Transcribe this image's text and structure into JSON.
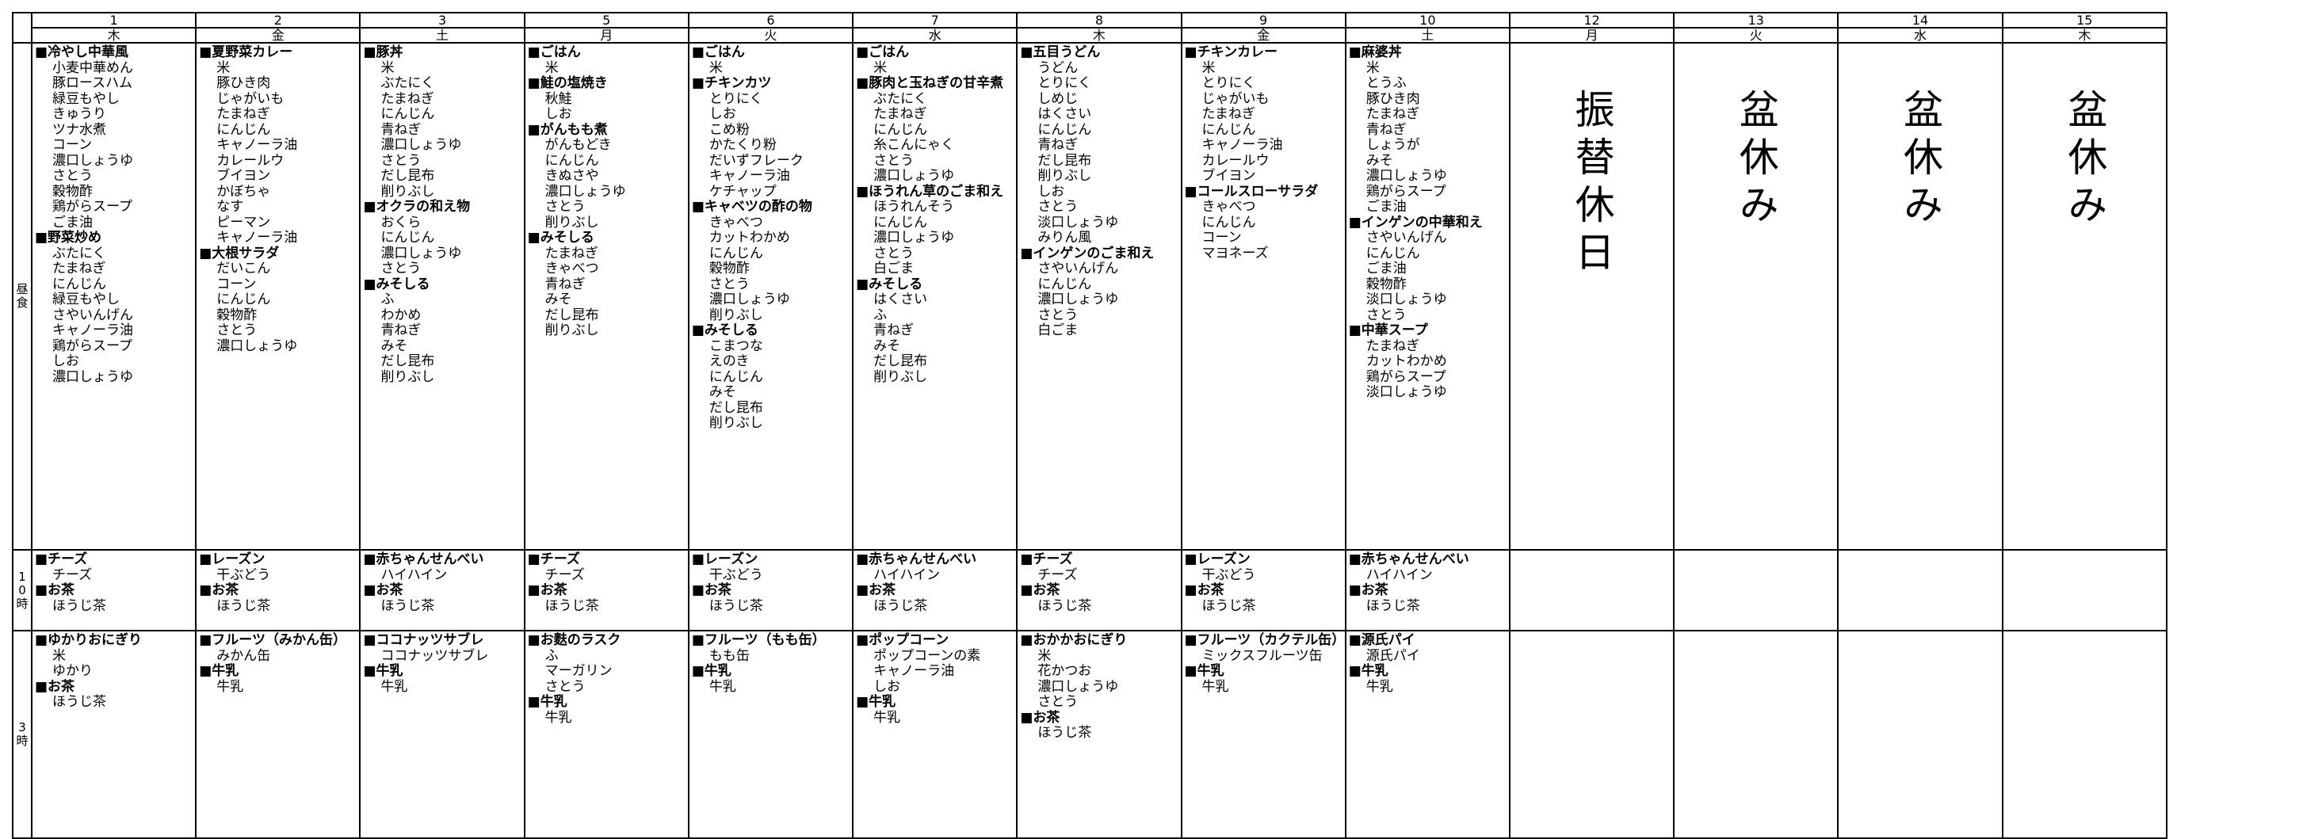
{
  "row_labels": {
    "lunch": "昼食",
    "am": "10時",
    "pm": "3時"
  },
  "days": [
    {
      "date": "1",
      "weekday": "木",
      "lunch": [
        "■冷やし中華風",
        "小麦中華めん",
        "豚ロースハム",
        "緑豆もやし",
        "きゅうり",
        "ツナ水煮",
        "コーン",
        "濃口しょうゆ",
        "さとう",
        "穀物酢",
        "鶏がらスープ",
        "ごま油",
        "■野菜炒め",
        "ぶたにく",
        "たまねぎ",
        "にんじん",
        "緑豆もやし",
        "さやいんげん",
        "キャノーラ油",
        "鶏がらスープ",
        "しお",
        "濃口しょうゆ"
      ],
      "am": [
        "■チーズ",
        "チーズ",
        "■お茶",
        "ほうじ茶"
      ],
      "pm": [
        "■ゆかりおにぎり",
        "米",
        "ゆかり",
        "■お茶",
        "ほうじ茶"
      ]
    },
    {
      "date": "2",
      "weekday": "金",
      "lunch": [
        "■夏野菜カレー",
        "米",
        "豚ひき肉",
        "じゃがいも",
        "たまねぎ",
        "にんじん",
        "キャノーラ油",
        "カレールウ",
        "ブイヨン",
        "かぼちゃ",
        "なす",
        "ピーマン",
        "キャノーラ油",
        "■大根サラダ",
        "だいこん",
        "コーン",
        "にんじん",
        "穀物酢",
        "さとう",
        "濃口しょうゆ"
      ],
      "am": [
        "■レーズン",
        "干ぶどう",
        "■お茶",
        "ほうじ茶"
      ],
      "pm": [
        "■フルーツ（みかん缶）",
        "みかん缶",
        "■牛乳",
        "牛乳"
      ]
    },
    {
      "date": "3",
      "weekday": "土",
      "lunch": [
        "■豚丼",
        "米",
        "ぶたにく",
        "たまねぎ",
        "にんじん",
        "青ねぎ",
        "濃口しょうゆ",
        "さとう",
        "だし昆布",
        "削りぶし",
        "■オクラの和え物",
        "おくら",
        "にんじん",
        "濃口しょうゆ",
        "さとう",
        "■みそしる",
        "ふ",
        "わかめ",
        "青ねぎ",
        "みそ",
        "だし昆布",
        "削りぶし"
      ],
      "am": [
        "■赤ちゃんせんべい",
        "ハイハイン",
        "■お茶",
        "ほうじ茶"
      ],
      "pm": [
        "■ココナッツサブレ",
        "ココナッツサブレ",
        "■牛乳",
        "牛乳"
      ]
    },
    {
      "date": "5",
      "weekday": "月",
      "lunch": [
        "■ごはん",
        "米",
        "■鮭の塩焼き",
        "秋鮭",
        "しお",
        "■がんもも煮",
        "がんもどき",
        "にんじん",
        "きぬさや",
        "濃口しょうゆ",
        "さとう",
        "削りぶし",
        "■みそしる",
        "たまねぎ",
        "きゃべつ",
        "青ねぎ",
        "みそ",
        "だし昆布",
        "削りぶし"
      ],
      "am": [
        "■チーズ",
        "チーズ",
        "■お茶",
        "ほうじ茶"
      ],
      "pm": [
        "■お麩のラスク",
        "ふ",
        "マーガリン",
        "さとう",
        "■牛乳",
        "牛乳"
      ]
    },
    {
      "date": "6",
      "weekday": "火",
      "lunch": [
        "■ごはん",
        "米",
        "■チキンカツ",
        "とりにく",
        "しお",
        "こめ粉",
        "かたくり粉",
        "だいずフレーク",
        "キャノーラ油",
        "ケチャップ",
        "■キャベツの酢の物",
        "きゃべつ",
        "カットわかめ",
        "にんじん",
        "穀物酢",
        "さとう",
        "濃口しょうゆ",
        "削りぶし",
        "■みそしる",
        "こまつな",
        "えのき",
        "にんじん",
        "みそ",
        "だし昆布",
        "削りぶし"
      ],
      "am": [
        "■レーズン",
        "干ぶどう",
        "■お茶",
        "ほうじ茶"
      ],
      "pm": [
        "■フルーツ（もも缶）",
        "もも缶",
        "■牛乳",
        "牛乳"
      ]
    },
    {
      "date": "7",
      "weekday": "水",
      "lunch": [
        "■ごはん",
        "米",
        "■豚肉と玉ねぎの甘辛煮",
        "ぶたにく",
        "たまねぎ",
        "にんじん",
        "糸こんにゃく",
        "さとう",
        "濃口しょうゆ",
        "■ほうれん草のごま和え",
        "ほうれんそう",
        "にんじん",
        "濃口しょうゆ",
        "さとう",
        "白ごま",
        "■みそしる",
        "はくさい",
        "ふ",
        "青ねぎ",
        "みそ",
        "だし昆布",
        "削りぶし"
      ],
      "am": [
        "■赤ちゃんせんべい",
        "ハイハイン",
        "■お茶",
        "ほうじ茶"
      ],
      "pm": [
        "■ポップコーン",
        "ポップコーンの素",
        "キャノーラ油",
        "しお",
        "■牛乳",
        "牛乳"
      ]
    },
    {
      "date": "8",
      "weekday": "木",
      "lunch": [
        "■五目うどん",
        "うどん",
        "とりにく",
        "しめじ",
        "はくさい",
        "にんじん",
        "青ねぎ",
        "だし昆布",
        "削りぶし",
        "しお",
        "さとう",
        "淡口しょうゆ",
        "みりん風",
        "■インゲンのごま和え",
        "さやいんげん",
        "にんじん",
        "濃口しょうゆ",
        "さとう",
        "白ごま"
      ],
      "am": [
        "■チーズ",
        "チーズ",
        "■お茶",
        "ほうじ茶"
      ],
      "pm": [
        "■おかかおにぎり",
        "米",
        "花かつお",
        "濃口しょうゆ",
        "さとう",
        "■お茶",
        "ほうじ茶"
      ]
    },
    {
      "date": "9",
      "weekday": "金",
      "lunch": [
        "■チキンカレー",
        "米",
        "とりにく",
        "じゃがいも",
        "たまねぎ",
        "にんじん",
        "キャノーラ油",
        "カレールウ",
        "ブイヨン",
        "■コールスローサラダ",
        "きゃべつ",
        "にんじん",
        "コーン",
        "マヨネーズ"
      ],
      "am": [
        "■レーズン",
        "干ぶどう",
        "■お茶",
        "ほうじ茶"
      ],
      "pm": [
        "■フルーツ（カクテル缶）",
        "ミックスフルーツ缶",
        "■牛乳",
        "牛乳"
      ]
    },
    {
      "date": "10",
      "weekday": "土",
      "lunch": [
        "■麻婆丼",
        "米",
        "とうふ",
        "豚ひき肉",
        "たまねぎ",
        "青ねぎ",
        "しょうが",
        "みそ",
        "濃口しょうゆ",
        "鶏がらスープ",
        "ごま油",
        "■インゲンの中華和え",
        "さやいんげん",
        "にんじん",
        "ごま油",
        "穀物酢",
        "淡口しょうゆ",
        "さとう",
        "■中華スープ",
        "たまねぎ",
        "カットわかめ",
        "鶏がらスープ",
        "淡口しょうゆ"
      ],
      "am": [
        "■赤ちゃんせんべい",
        "ハイハイン",
        "■お茶",
        "ほうじ茶"
      ],
      "pm": [
        "■源氏パイ",
        "源氏パイ",
        "■牛乳",
        "牛乳"
      ]
    },
    {
      "date": "12",
      "weekday": "月",
      "note": "振替休日"
    },
    {
      "date": "13",
      "weekday": "火",
      "note": "盆休み"
    },
    {
      "date": "14",
      "weekday": "水",
      "note": "盆休み"
    },
    {
      "date": "15",
      "weekday": "木",
      "note": "盆休み"
    }
  ]
}
